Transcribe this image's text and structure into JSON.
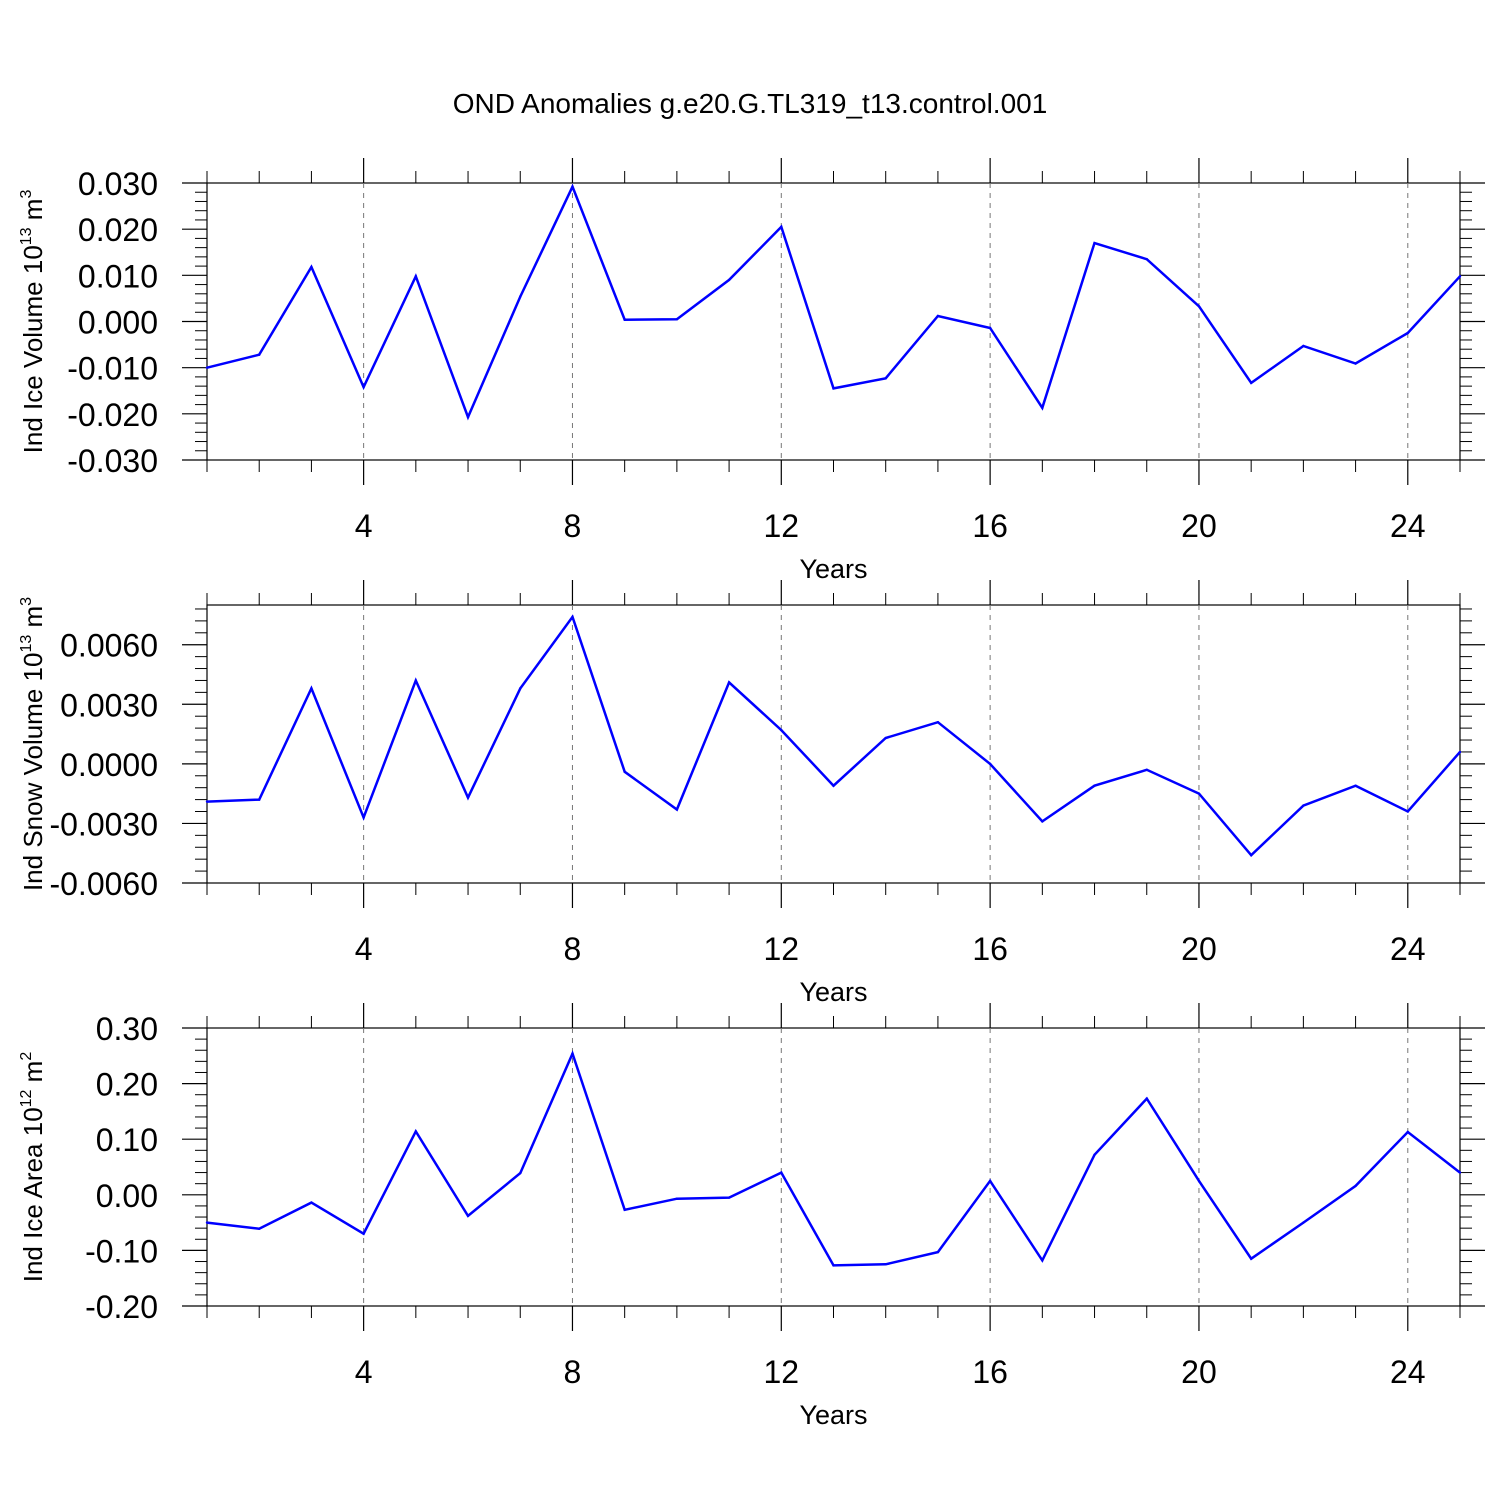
{
  "title": "OND Anomalies g.e20.G.TL319_t13.control.001",
  "line_color": "#0000ff",
  "chart_data": [
    {
      "type": "line",
      "name": "ice-volume",
      "ylabel": "Ind Ice Volume 10",
      "ylabel_exp": "13",
      "ylabel_unit": "m",
      "ylabel_unit_exp": "3",
      "xlabel": "Years",
      "xlim": [
        1,
        25
      ],
      "ylim": [
        -0.03,
        0.03
      ],
      "x_ticks": [
        4,
        8,
        12,
        16,
        20,
        24
      ],
      "y_ticks": [
        -0.03,
        -0.02,
        -0.01,
        0.0,
        0.01,
        0.02,
        0.03
      ],
      "y_tick_labels": [
        "-0.030",
        "-0.020",
        "-0.010",
        "0.000",
        "0.010",
        "0.020",
        "0.030"
      ],
      "x": [
        1,
        2,
        3,
        4,
        5,
        6,
        7,
        8,
        9,
        10,
        11,
        12,
        13,
        14,
        15,
        16,
        17,
        18,
        19,
        20,
        21,
        22,
        23,
        24,
        25
      ],
      "values": [
        -0.01,
        -0.0072,
        0.0118,
        -0.0142,
        0.0098,
        -0.0207,
        0.0054,
        0.0292,
        0.0004,
        0.0005,
        0.009,
        0.0205,
        -0.0145,
        -0.0123,
        0.0012,
        -0.0014,
        -0.0187,
        0.017,
        0.0135,
        0.0033,
        -0.0133,
        -0.0053,
        -0.0091,
        -0.0025,
        0.0098
      ]
    },
    {
      "type": "line",
      "name": "snow-volume",
      "ylabel": "Ind Snow Volume 10",
      "ylabel_exp": "13",
      "ylabel_unit": "m",
      "ylabel_unit_exp": "3",
      "xlabel": "Years",
      "xlim": [
        1,
        25
      ],
      "ylim": [
        -0.006,
        0.008
      ],
      "x_ticks": [
        4,
        8,
        12,
        16,
        20,
        24
      ],
      "y_ticks": [
        -0.006,
        -0.003,
        0.0,
        0.003,
        0.006
      ],
      "y_tick_labels": [
        "-0.0060",
        "-0.0030",
        "0.0000",
        "0.0030",
        "0.0060"
      ],
      "x": [
        1,
        2,
        3,
        4,
        5,
        6,
        7,
        8,
        9,
        10,
        11,
        12,
        13,
        14,
        15,
        16,
        17,
        18,
        19,
        20,
        21,
        22,
        23,
        24,
        25
      ],
      "values": [
        -0.0019,
        -0.0018,
        0.0038,
        -0.0027,
        0.0042,
        -0.0017,
        0.0038,
        0.0074,
        -0.0004,
        -0.0023,
        0.0041,
        0.0017,
        -0.0011,
        0.0013,
        0.0021,
        0.0,
        -0.0029,
        -0.0011,
        -0.0003,
        -0.0015,
        -0.0046,
        -0.0021,
        -0.0011,
        -0.0024,
        0.0006
      ]
    },
    {
      "type": "line",
      "name": "ice-area",
      "ylabel": "Ind Ice Area 10",
      "ylabel_exp": "12",
      "ylabel_unit": "m",
      "ylabel_unit_exp": "2",
      "xlabel": "Years",
      "xlim": [
        1,
        25
      ],
      "ylim": [
        -0.2,
        0.3
      ],
      "x_ticks": [
        4,
        8,
        12,
        16,
        20,
        24
      ],
      "y_ticks": [
        -0.2,
        -0.1,
        0.0,
        0.1,
        0.2,
        0.3
      ],
      "y_tick_labels": [
        "-0.20",
        "-0.10",
        "0.00",
        "0.10",
        "0.20",
        "0.30"
      ],
      "x": [
        1,
        2,
        3,
        4,
        5,
        6,
        7,
        8,
        9,
        10,
        11,
        12,
        13,
        14,
        15,
        16,
        17,
        18,
        19,
        20,
        21,
        22,
        23,
        24,
        25
      ],
      "values": [
        -0.05,
        -0.061,
        -0.014,
        -0.07,
        0.114,
        -0.038,
        0.039,
        0.254,
        -0.027,
        -0.007,
        -0.005,
        0.04,
        -0.127,
        -0.125,
        -0.103,
        0.025,
        -0.118,
        0.072,
        0.173,
        0.025,
        -0.115,
        -0.05,
        0.016,
        0.113,
        0.04
      ]
    }
  ]
}
